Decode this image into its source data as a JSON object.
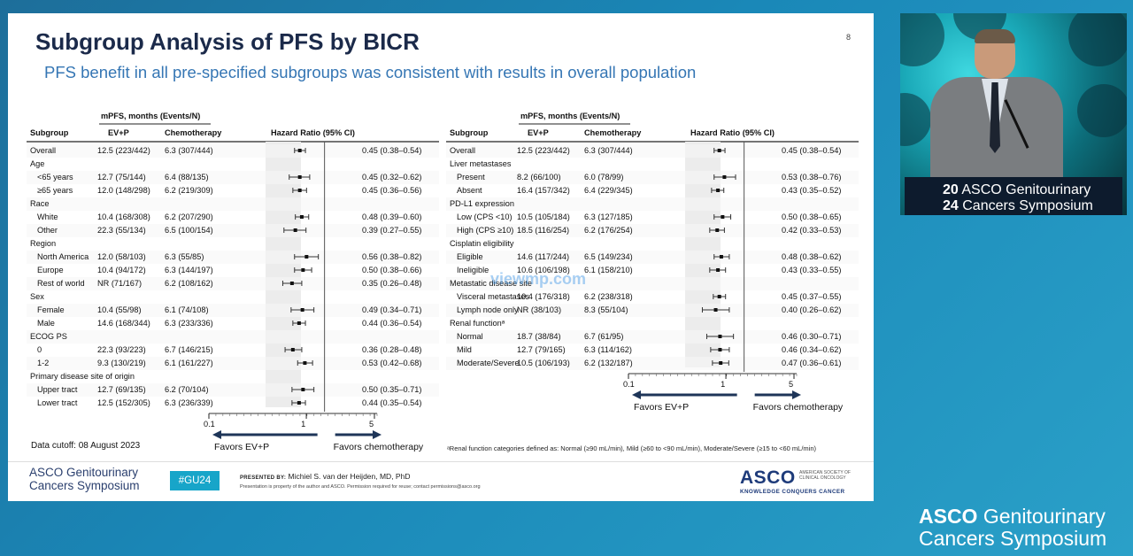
{
  "slide": {
    "title": "Subgroup Analysis of PFS by BICR",
    "subtitle": "PFS benefit in all pre-specified subgroups was consistent with results in overall population",
    "page_number": "8",
    "data_cutoff": "Data cutoff: 08 August 2023",
    "footnote": "ᵃRenal function categories defined as: Normal (≥90 mL/min), Mild (≥60 to <90 mL/min), Moderate/Severe (≥15 to <60 mL/min)",
    "watermark": "viewmp.com"
  },
  "footer": {
    "logo_line1": "ASCO Genitourinary",
    "logo_line2": "Cancers Symposium",
    "hashtag": "#GU24",
    "presented_by_label": "PRESENTED BY:",
    "presenter": "Michiel S. van der Heijden, MD, PhD",
    "property_note": "Presentation is property of the author and ASCO. Permission required for reuse; contact permissions@asco.org",
    "asco_right": "ASCO",
    "asco_right_side": "AMERICAN SOCIETY OF CLINICAL ONCOLOGY",
    "asco_right_tagline": "KNOWLEDGE CONQUERS CANCER"
  },
  "video": {
    "podium_line1_num": "20",
    "podium_line1_text": "ASCO Genitourinary",
    "podium_line2_num": "24",
    "podium_line2_text": "Cancers Symposium"
  },
  "brand": {
    "line1_bold": "ASCO",
    "line1_rest": "Genitourinary",
    "line2": "Cancers Symposium"
  },
  "colors": {
    "title": "#1b2a4a",
    "subtitle": "#3576b4",
    "accent": "#17a5c9",
    "arrow": "#1e3558",
    "background": "#1d6e9a"
  },
  "chart_data": [
    {
      "type": "forest",
      "header_group": "mPFS, months (Events/N)",
      "columns": [
        "Subgroup",
        "EV+P",
        "Chemotherapy",
        "Hazard Ratio (95% CI)"
      ],
      "x_scale": "log",
      "xlim": [
        0.1,
        5
      ],
      "ticks": [
        {
          "value": 0.1,
          "label": "0.1"
        },
        {
          "value": 1,
          "label": "1"
        },
        {
          "value": 5,
          "label": "5"
        }
      ],
      "reference_line": 1,
      "favors_left": "Favors EV+P",
      "favors_right": "Favors chemotherapy",
      "rows": [
        {
          "kind": "row",
          "label": "Overall",
          "evp": "12.5 (223/442)",
          "chemo": "6.3 (307/444)",
          "hr": 0.45,
          "lo": 0.38,
          "hi": 0.54,
          "hr_text": "0.45 (0.38–0.54)"
        },
        {
          "kind": "cat",
          "label": "Age"
        },
        {
          "kind": "row",
          "label": "<65 years",
          "evp": "12.7 (75/144)",
          "chemo": "6.4 (88/135)",
          "hr": 0.45,
          "lo": 0.32,
          "hi": 0.62,
          "hr_text": "0.45 (0.32–0.62)"
        },
        {
          "kind": "row",
          "label": "≥65 years",
          "evp": "12.0 (148/298)",
          "chemo": "6.2 (219/309)",
          "hr": 0.45,
          "lo": 0.36,
          "hi": 0.56,
          "hr_text": "0.45 (0.36–0.56)"
        },
        {
          "kind": "cat",
          "label": "Race"
        },
        {
          "kind": "row",
          "label": "White",
          "evp": "10.4 (168/308)",
          "chemo": "6.2 (207/290)",
          "hr": 0.48,
          "lo": 0.39,
          "hi": 0.6,
          "hr_text": "0.48 (0.39–0.60)"
        },
        {
          "kind": "row",
          "label": "Other",
          "evp": "22.3 (55/134)",
          "chemo": "6.5 (100/154)",
          "hr": 0.39,
          "lo": 0.27,
          "hi": 0.55,
          "hr_text": "0.39 (0.27–0.55)"
        },
        {
          "kind": "cat",
          "label": "Region"
        },
        {
          "kind": "row",
          "label": "North America",
          "evp": "12.0 (58/103)",
          "chemo": "6.3 (55/85)",
          "hr": 0.56,
          "lo": 0.38,
          "hi": 0.82,
          "hr_text": "0.56 (0.38–0.82)"
        },
        {
          "kind": "row",
          "label": "Europe",
          "evp": "10.4 (94/172)",
          "chemo": "6.3 (144/197)",
          "hr": 0.5,
          "lo": 0.38,
          "hi": 0.66,
          "hr_text": "0.50 (0.38–0.66)"
        },
        {
          "kind": "row",
          "label": "Rest of world",
          "evp": "NR (71/167)",
          "chemo": "6.2 (108/162)",
          "hr": 0.35,
          "lo": 0.26,
          "hi": 0.48,
          "hr_text": "0.35 (0.26–0.48)"
        },
        {
          "kind": "cat",
          "label": "Sex"
        },
        {
          "kind": "row",
          "label": "Female",
          "evp": "10.4 (55/98)",
          "chemo": "6.1 (74/108)",
          "hr": 0.49,
          "lo": 0.34,
          "hi": 0.71,
          "hr_text": "0.49 (0.34–0.71)"
        },
        {
          "kind": "row",
          "label": "Male",
          "evp": "14.6 (168/344)",
          "chemo": "6.3 (233/336)",
          "hr": 0.44,
          "lo": 0.36,
          "hi": 0.54,
          "hr_text": "0.44 (0.36–0.54)"
        },
        {
          "kind": "cat",
          "label": "ECOG PS"
        },
        {
          "kind": "row",
          "label": "0",
          "evp": "22.3 (93/223)",
          "chemo": "6.7 (146/215)",
          "hr": 0.36,
          "lo": 0.28,
          "hi": 0.48,
          "hr_text": "0.36 (0.28–0.48)"
        },
        {
          "kind": "row",
          "label": "1-2",
          "evp": "9.3 (130/219)",
          "chemo": "6.1 (161/227)",
          "hr": 0.53,
          "lo": 0.42,
          "hi": 0.68,
          "hr_text": "0.53 (0.42–0.68)"
        },
        {
          "kind": "cat",
          "label": "Primary disease site of origin"
        },
        {
          "kind": "row",
          "label": "Upper tract",
          "evp": "12.7 (69/135)",
          "chemo": "6.2 (70/104)",
          "hr": 0.5,
          "lo": 0.35,
          "hi": 0.71,
          "hr_text": "0.50 (0.35–0.71)"
        },
        {
          "kind": "row",
          "label": "Lower tract",
          "evp": "12.5 (152/305)",
          "chemo": "6.3 (236/339)",
          "hr": 0.44,
          "lo": 0.35,
          "hi": 0.54,
          "hr_text": "0.44 (0.35–0.54)"
        }
      ]
    },
    {
      "type": "forest",
      "header_group": "mPFS, months (Events/N)",
      "columns": [
        "Subgroup",
        "EV+P",
        "Chemotherapy",
        "Hazard Ratio (95% CI)"
      ],
      "x_scale": "log",
      "xlim": [
        0.1,
        5
      ],
      "ticks": [
        {
          "value": 0.1,
          "label": "0.1"
        },
        {
          "value": 1,
          "label": "1"
        },
        {
          "value": 5,
          "label": "5"
        }
      ],
      "reference_line": 1,
      "favors_left": "Favors EV+P",
      "favors_right": "Favors chemotherapy",
      "rows": [
        {
          "kind": "row",
          "label": "Overall",
          "evp": "12.5 (223/442)",
          "chemo": "6.3 (307/444)",
          "hr": 0.45,
          "lo": 0.38,
          "hi": 0.54,
          "hr_text": "0.45 (0.38–0.54)"
        },
        {
          "kind": "cat",
          "label": "Liver metastases"
        },
        {
          "kind": "row",
          "label": "Present",
          "evp": "8.2 (66/100)",
          "chemo": "6.0 (78/99)",
          "hr": 0.53,
          "lo": 0.38,
          "hi": 0.76,
          "hr_text": "0.53 (0.38–0.76)"
        },
        {
          "kind": "row",
          "label": "Absent",
          "evp": "16.4 (157/342)",
          "chemo": "6.4 (229/345)",
          "hr": 0.43,
          "lo": 0.35,
          "hi": 0.52,
          "hr_text": "0.43 (0.35–0.52)"
        },
        {
          "kind": "cat",
          "label": "PD-L1 expression"
        },
        {
          "kind": "row",
          "label": "Low (CPS <10)",
          "evp": "10.5 (105/184)",
          "chemo": "6.3 (127/185)",
          "hr": 0.5,
          "lo": 0.38,
          "hi": 0.65,
          "hr_text": "0.50 (0.38–0.65)"
        },
        {
          "kind": "row",
          "label": "High (CPS ≥10)",
          "evp": "18.5 (116/254)",
          "chemo": "6.2 (176/254)",
          "hr": 0.42,
          "lo": 0.33,
          "hi": 0.53,
          "hr_text": "0.42 (0.33–0.53)"
        },
        {
          "kind": "cat",
          "label": "Cisplatin eligibility"
        },
        {
          "kind": "row",
          "label": "Eligible",
          "evp": "14.6 (117/244)",
          "chemo": "6.5 (149/234)",
          "hr": 0.48,
          "lo": 0.38,
          "hi": 0.62,
          "hr_text": "0.48 (0.38–0.62)"
        },
        {
          "kind": "row",
          "label": "Ineligible",
          "evp": "10.6 (106/198)",
          "chemo": "6.1 (158/210)",
          "hr": 0.43,
          "lo": 0.33,
          "hi": 0.55,
          "hr_text": "0.43 (0.33–0.55)"
        },
        {
          "kind": "cat",
          "label": "Metastatic disease site"
        },
        {
          "kind": "row",
          "label": "Visceral metastases",
          "evp": "10.4 (176/318)",
          "chemo": "6.2 (238/318)",
          "hr": 0.45,
          "lo": 0.37,
          "hi": 0.55,
          "hr_text": "0.45 (0.37–0.55)"
        },
        {
          "kind": "row",
          "label": "Lymph node only",
          "evp": "NR (38/103)",
          "chemo": "8.3 (55/104)",
          "hr": 0.4,
          "lo": 0.26,
          "hi": 0.62,
          "hr_text": "0.40 (0.26–0.62)"
        },
        {
          "kind": "cat",
          "label": "Renal functionᵃ"
        },
        {
          "kind": "row",
          "label": "Normal",
          "evp": "18.7 (38/84)",
          "chemo": "6.7 (61/95)",
          "hr": 0.46,
          "lo": 0.3,
          "hi": 0.71,
          "hr_text": "0.46 (0.30–0.71)"
        },
        {
          "kind": "row",
          "label": "Mild",
          "evp": "12.7 (79/165)",
          "chemo": "6.3 (114/162)",
          "hr": 0.46,
          "lo": 0.34,
          "hi": 0.62,
          "hr_text": "0.46 (0.34–0.62)"
        },
        {
          "kind": "row",
          "label": "Moderate/Severe",
          "evp": "10.5 (106/193)",
          "chemo": "6.2 (132/187)",
          "hr": 0.47,
          "lo": 0.36,
          "hi": 0.61,
          "hr_text": "0.47 (0.36–0.61)"
        }
      ]
    }
  ]
}
